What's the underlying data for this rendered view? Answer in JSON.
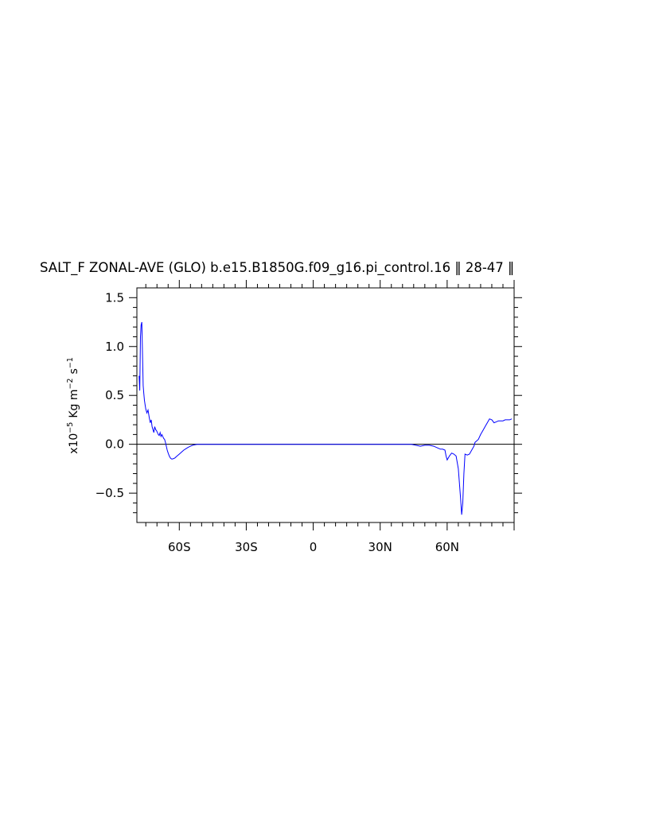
{
  "chart_data": {
    "type": "line",
    "title": "SALT_F ZONAL-AVE (GLO) b.e15.B1850G.f09_g16.pi_control.16 ‖ 28-47 ‖",
    "ylabel": {
      "prefix": "x10",
      "prefix_exp": "−5",
      "unit1": "Kg m",
      "unit1_exp": "−2",
      "unit2": "s",
      "unit2_exp": "−1"
    },
    "xlim": [
      -79,
      90
    ],
    "ylim": [
      -0.8,
      1.6
    ],
    "x_ticks": [
      {
        "value": -60,
        "label": "60S"
      },
      {
        "value": -30,
        "label": "30S"
      },
      {
        "value": 0,
        "label": "0"
      },
      {
        "value": 30,
        "label": "30N"
      },
      {
        "value": 60,
        "label": "60N"
      }
    ],
    "y_ticks": [
      {
        "value": 1.5,
        "label": "1.5"
      },
      {
        "value": 1.0,
        "label": "1.0"
      },
      {
        "value": 0.5,
        "label": "0.5"
      },
      {
        "value": 0.0,
        "label": "0.0"
      },
      {
        "value": -0.5,
        "label": "−0.5"
      }
    ],
    "zero_line": true,
    "series": [
      {
        "color": "#0000ff",
        "x": [
          -78,
          -77.7,
          -77.4,
          -77.1,
          -76.8,
          -76.5,
          -76.2,
          -75.9,
          -75.6,
          -75.3,
          -75,
          -74.5,
          -74,
          -73.5,
          -73,
          -72.6,
          -72.2,
          -71.8,
          -71.4,
          -71,
          -70.6,
          -70.2,
          -69.8,
          -69.4,
          -69,
          -68.6,
          -68.2,
          -67.8,
          -67.4,
          -67,
          -66.6,
          -66.2,
          -65.8,
          -65.4,
          -65,
          -64.5,
          -64,
          -63.5,
          -63,
          -62,
          -61,
          -60,
          -59,
          -58,
          -57,
          -56,
          -55,
          -54,
          -53,
          -52,
          -51,
          -50,
          44,
          46,
          48,
          50,
          52,
          54,
          56,
          57,
          58,
          59,
          59.5,
          60,
          61,
          62,
          63,
          64,
          65,
          66,
          66.5,
          67,
          67.5,
          68,
          69,
          70,
          71,
          72,
          72.5,
          73,
          74,
          75,
          76,
          77,
          78,
          79,
          80,
          81,
          82,
          83,
          84,
          85,
          86,
          87,
          88,
          89
        ],
        "y": [
          0.7,
          0.55,
          1.1,
          1.22,
          1.25,
          0.95,
          0.6,
          0.52,
          0.45,
          0.4,
          0.36,
          0.32,
          0.35,
          0.28,
          0.22,
          0.25,
          0.18,
          0.15,
          0.12,
          0.18,
          0.15,
          0.14,
          0.12,
          0.1,
          0.09,
          0.12,
          0.08,
          0.1,
          0.08,
          0.06,
          0.05,
          0.02,
          -0.02,
          -0.06,
          -0.09,
          -0.12,
          -0.14,
          -0.15,
          -0.15,
          -0.14,
          -0.12,
          -0.1,
          -0.08,
          -0.06,
          -0.045,
          -0.03,
          -0.02,
          -0.01,
          -0.005,
          0,
          0,
          0,
          0,
          -0.01,
          -0.02,
          -0.01,
          -0.01,
          -0.02,
          -0.04,
          -0.05,
          -0.05,
          -0.06,
          -0.12,
          -0.16,
          -0.12,
          -0.09,
          -0.1,
          -0.12,
          -0.25,
          -0.55,
          -0.72,
          -0.6,
          -0.3,
          -0.1,
          -0.11,
          -0.1,
          -0.06,
          -0.02,
          0.02,
          0.03,
          0.05,
          0.1,
          0.14,
          0.18,
          0.22,
          0.26,
          0.25,
          0.22,
          0.23,
          0.24,
          0.24,
          0.24,
          0.25,
          0.25,
          0.25,
          0.26
        ]
      }
    ]
  }
}
